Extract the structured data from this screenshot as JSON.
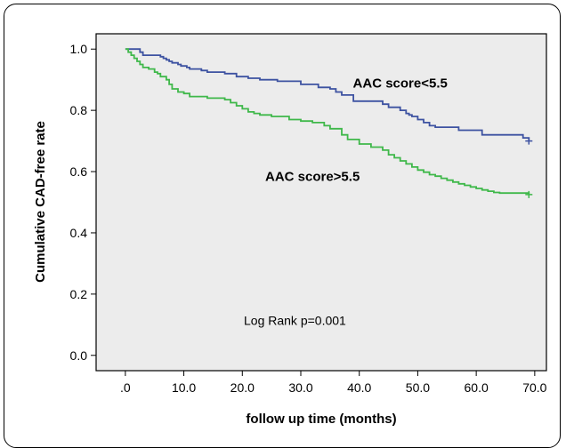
{
  "chart_data": {
    "type": "line",
    "step": true,
    "ylabel": "Cumulative CAD-free rate",
    "xlabel": "follow up time (months)",
    "xlim": [
      -5,
      72
    ],
    "ylim": [
      -0.05,
      1.05
    ],
    "xticks": [
      ".0",
      "10.0",
      "20.0",
      "30.0",
      "40.0",
      "50.0",
      "60.0",
      "70.0"
    ],
    "xtick_values": [
      0,
      10,
      20,
      30,
      40,
      50,
      60,
      70
    ],
    "yticks": [
      "0.0",
      "0.2",
      "0.4",
      "0.6",
      "0.8",
      "1.0"
    ],
    "ytick_values": [
      0,
      0.2,
      0.4,
      0.6,
      0.8,
      1.0
    ],
    "grid": false,
    "background_color": "#ececec",
    "series": [
      {
        "name": "AAC score<5.5",
        "color": "#3d52a1",
        "x": [
          0,
          2.5,
          3,
          6,
          6.5,
          7,
          7.5,
          8,
          9,
          9.5,
          10.5,
          11,
          13,
          14,
          17,
          19,
          21,
          23,
          26,
          30,
          33,
          35,
          36,
          37,
          39,
          44,
          45,
          47,
          48,
          48.5,
          49,
          50,
          51,
          52,
          53,
          57,
          61,
          68,
          69
        ],
        "y": [
          1.0,
          0.99,
          0.98,
          0.975,
          0.97,
          0.965,
          0.96,
          0.955,
          0.95,
          0.945,
          0.94,
          0.935,
          0.93,
          0.925,
          0.92,
          0.91,
          0.905,
          0.9,
          0.895,
          0.885,
          0.875,
          0.87,
          0.86,
          0.85,
          0.83,
          0.82,
          0.81,
          0.8,
          0.79,
          0.785,
          0.78,
          0.77,
          0.76,
          0.75,
          0.745,
          0.735,
          0.72,
          0.71,
          0.7
        ]
      },
      {
        "name": "AAC score>5.5",
        "color": "#3fb84a",
        "x": [
          0,
          0.5,
          1,
          1.5,
          2,
          2.5,
          3,
          4,
          5,
          5.5,
          6,
          7,
          7.5,
          8,
          9,
          10,
          11,
          14,
          17,
          18,
          19,
          20,
          21,
          22,
          23,
          25,
          28,
          30,
          32,
          34,
          35,
          37,
          38,
          40,
          42,
          44,
          45,
          46,
          47,
          48,
          49,
          50,
          51,
          52,
          53,
          54,
          55,
          56,
          57,
          58,
          59,
          60,
          61,
          62,
          63,
          64,
          69
        ],
        "y": [
          1.0,
          0.99,
          0.98,
          0.97,
          0.96,
          0.95,
          0.94,
          0.935,
          0.925,
          0.92,
          0.91,
          0.9,
          0.885,
          0.87,
          0.86,
          0.855,
          0.845,
          0.84,
          0.835,
          0.825,
          0.815,
          0.805,
          0.795,
          0.79,
          0.785,
          0.78,
          0.77,
          0.765,
          0.76,
          0.75,
          0.74,
          0.72,
          0.705,
          0.69,
          0.68,
          0.67,
          0.655,
          0.645,
          0.635,
          0.625,
          0.615,
          0.605,
          0.598,
          0.59,
          0.585,
          0.578,
          0.572,
          0.566,
          0.56,
          0.555,
          0.55,
          0.545,
          0.54,
          0.536,
          0.532,
          0.53,
          0.525
        ]
      }
    ],
    "annotations": [
      {
        "text": "AAC score<5.5",
        "x": 47,
        "y": 0.875,
        "bold": true
      },
      {
        "text": "AAC score>5.5",
        "x": 32,
        "y": 0.57,
        "bold": true
      },
      {
        "text": "Log Rank p=0.001",
        "x": 29,
        "y": 0.1,
        "bold": false
      }
    ]
  }
}
